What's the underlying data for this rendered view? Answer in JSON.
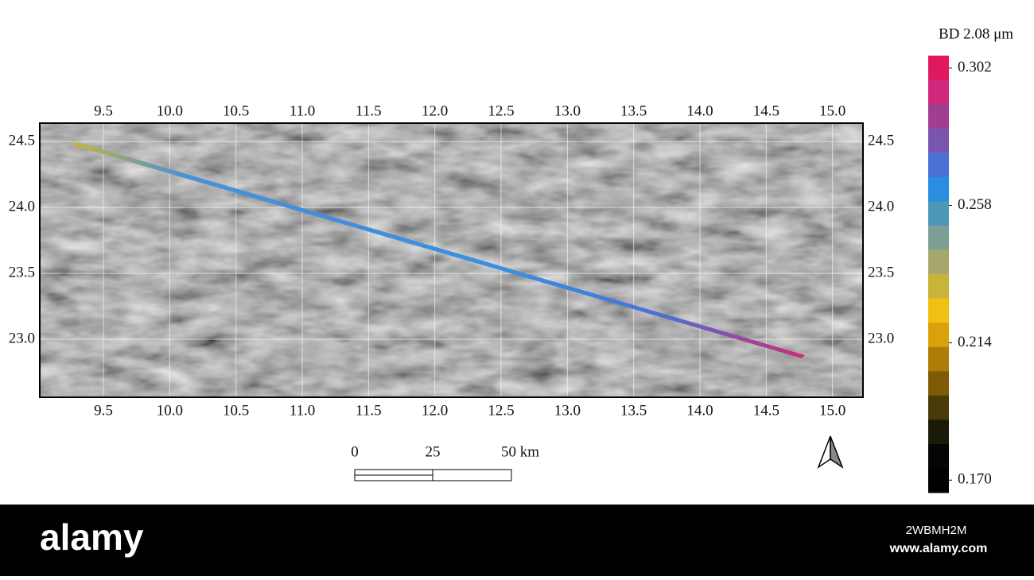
{
  "map": {
    "x_axis": {
      "lim": [
        9.02,
        15.23
      ],
      "ticks": [
        9.5,
        {
          "value": 10,
          "label": "10.0"
        },
        10.5,
        {
          "value": 11,
          "label": "11.0"
        },
        11.5,
        {
          "value": 12,
          "label": "12.0"
        },
        12.5,
        {
          "value": 13,
          "label": "13.0"
        },
        13.5,
        {
          "value": 14,
          "label": "14.0"
        },
        14.5,
        {
          "value": 15,
          "label": "15.0"
        }
      ]
    },
    "y_axis": {
      "lim": [
        22.56,
        24.64
      ],
      "ticks": [
        {
          "value": 23,
          "label": "23.0"
        },
        23.5,
        {
          "value": 24,
          "label": "24.0"
        },
        24.5
      ]
    },
    "grid": true
  },
  "colorbar": {
    "title": "BD 2.08 μm",
    "lim": [
      0.166,
      0.306
    ],
    "ticks": [
      0.302,
      0.258,
      0.214,
      {
        "value": 0.17,
        "label": "0.170"
      }
    ],
    "colors": [
      "#e0195e",
      "#d0287a",
      "#a03e8f",
      "#7a55b0",
      "#4a72d4",
      "#2a8ee0",
      "#4d98b8",
      "#7d9f95",
      "#a5a86a",
      "#c9b43a",
      "#f2c010",
      "#d9a20a",
      "#b07c08",
      "#7e5c06",
      "#4a3a08",
      "#1a1a0a",
      "#050505",
      "#000000"
    ]
  },
  "scale_bar": {
    "labels": [
      "0",
      "25",
      "50 km"
    ]
  },
  "footer": {
    "logo": "alamy",
    "image_id": "2WBMH2M",
    "url": "www.alamy.com"
  }
}
